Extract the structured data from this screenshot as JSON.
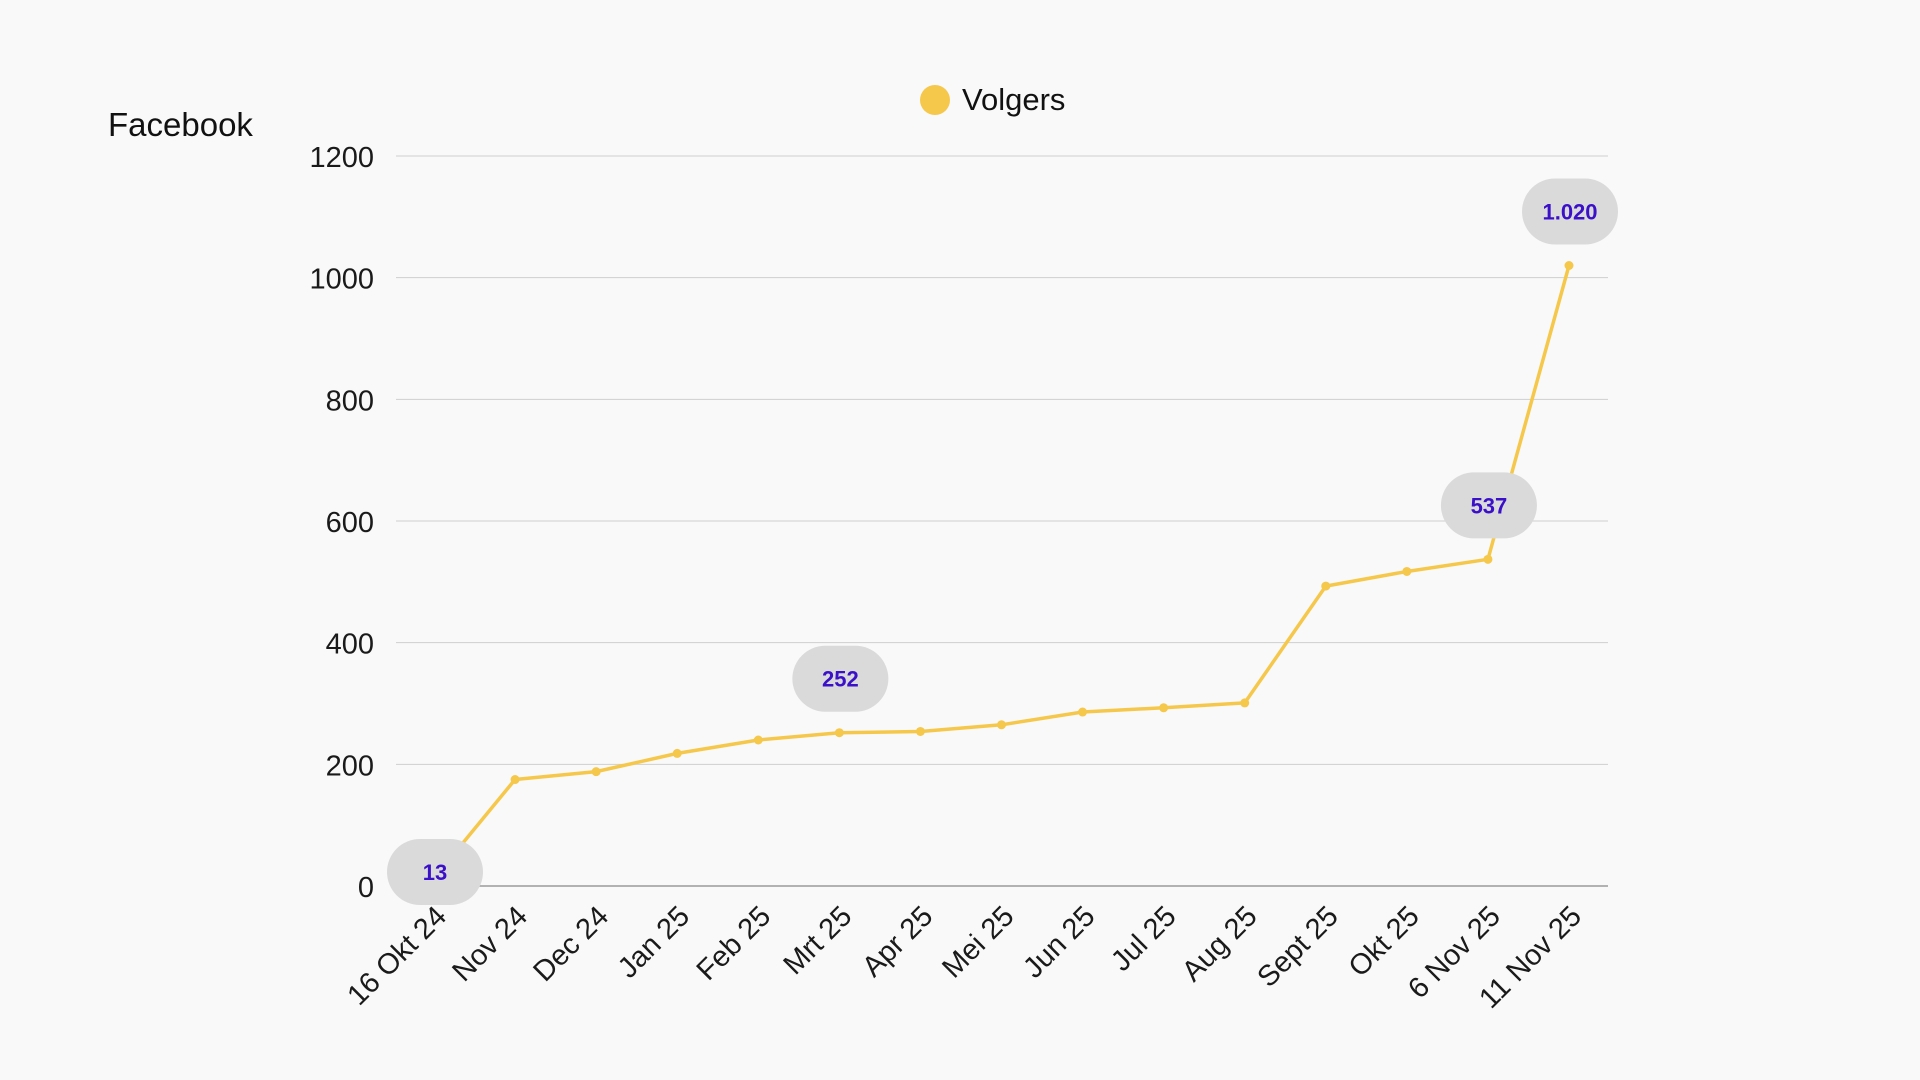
{
  "page_title": "Facebook",
  "legend": {
    "label": "Volgers",
    "color": "#f5c84c"
  },
  "colors": {
    "line": "#f5c84c",
    "grid": "#cfcfcf",
    "baseline": "#9a9a9a",
    "callout_bg": "#dadada",
    "callout_text": "#3a10c8",
    "axis_text": "#1a1a1a"
  },
  "chart_data": {
    "type": "line",
    "title": "",
    "xlabel": "",
    "ylabel": "",
    "ylim": [
      0,
      1200
    ],
    "yticks": [
      0,
      200,
      400,
      600,
      800,
      1000,
      1200
    ],
    "grid": true,
    "legend_position": "top-center",
    "categories": [
      "16 Okt 24",
      "Nov 24",
      "Dec 24",
      "Jan 25",
      "Feb 25",
      "Mrt 25",
      "Apr 25",
      "Mei 25",
      "Jun 25",
      "Jul 25",
      "Aug 25",
      "Sept 25",
      "Okt 25",
      "6 Nov 25",
      "11 Nov 25"
    ],
    "series": [
      {
        "name": "Volgers",
        "values": [
          13,
          175,
          188,
          218,
          240,
          252,
          254,
          265,
          286,
          293,
          301,
          493,
          517,
          537,
          1020
        ]
      }
    ],
    "callouts": [
      {
        "index": 0,
        "label": "13"
      },
      {
        "index": 5,
        "label": "252"
      },
      {
        "index": 13,
        "label": "537"
      },
      {
        "index": 14,
        "label": "1.020"
      }
    ]
  }
}
